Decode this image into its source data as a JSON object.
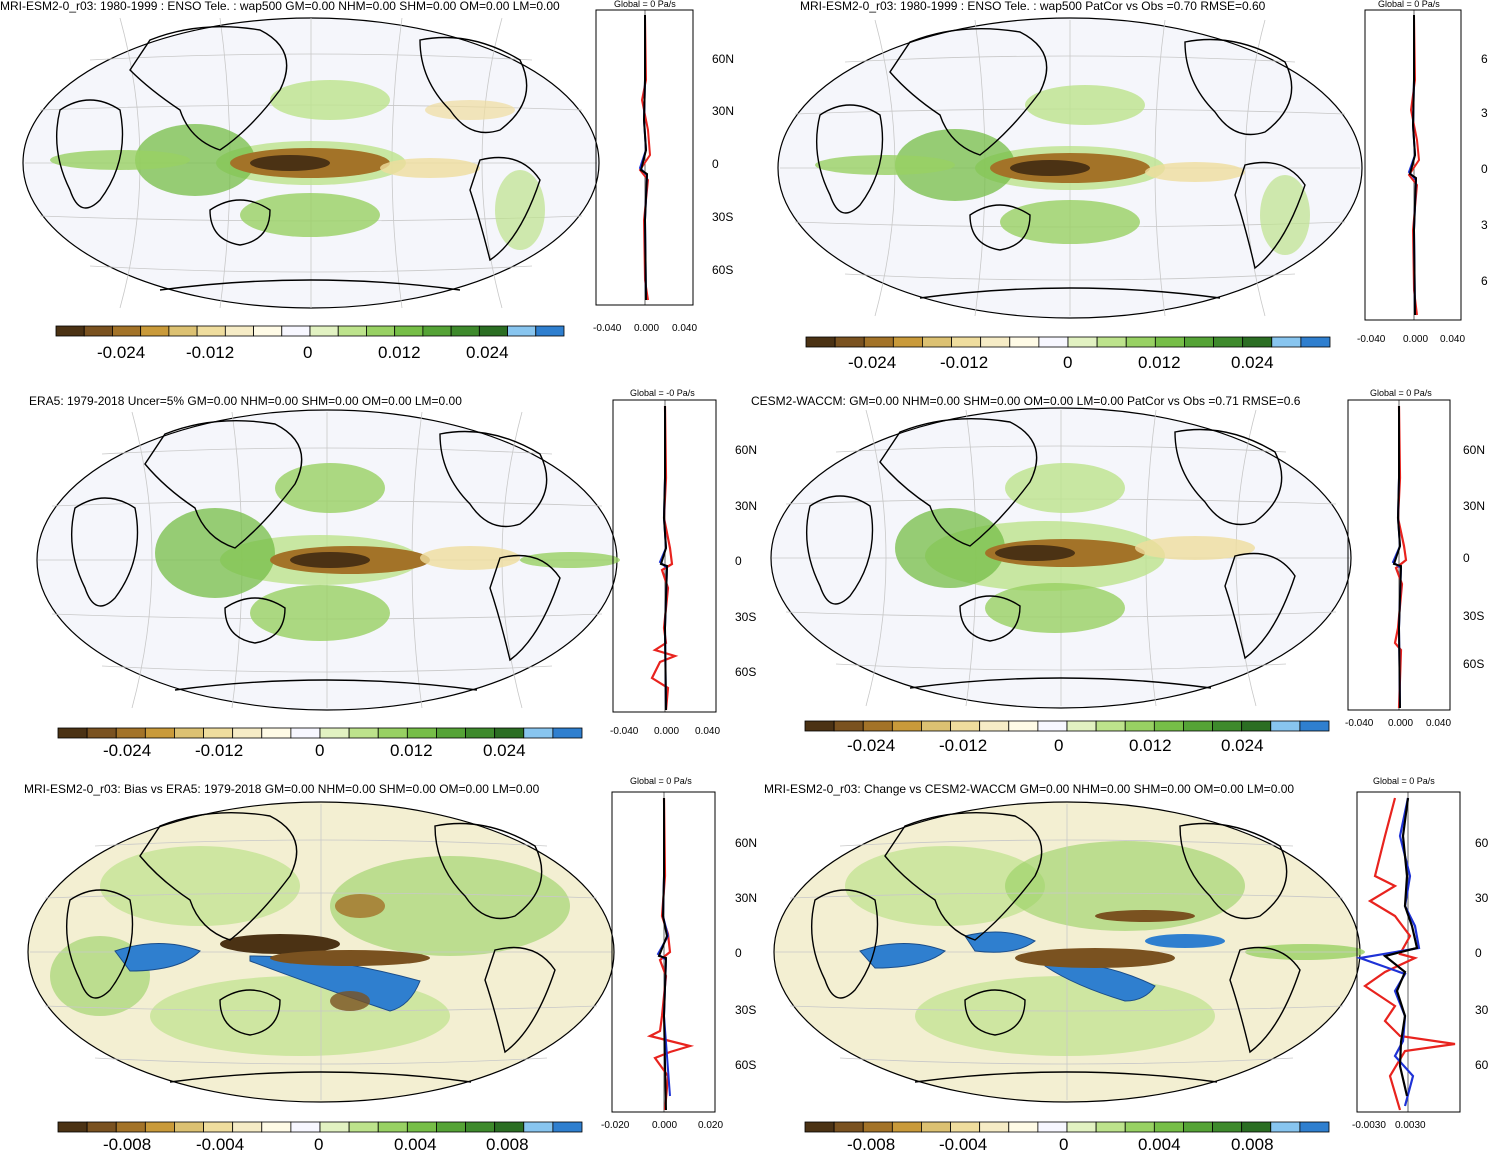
{
  "colors": {
    "scale": [
      "#4b3214",
      "#7a5220",
      "#a37328",
      "#c99a3a",
      "#dcc172",
      "#efdd9e",
      "#f6ecc6",
      "#fffbe6",
      "#f7f7ff",
      "#e2f2c2",
      "#bde38c",
      "#98d163",
      "#76be47",
      "#55a336",
      "#3e8a2c",
      "#2b6e23",
      "#88c5ef",
      "#2f7fcf"
    ],
    "land": "#ffffff",
    "ocean": "#f5f6fb",
    "obs_line": "#e8231e",
    "model_line": "#1e32d6",
    "mean_line": "#000000"
  },
  "panels": [
    {
      "title": "MRI-ESM2-0_r03: 1980-1999 : ENSO Tele. : wap500 GM=0.00 NHM=0.00 SHM=0.00 OM=0.00 LM=0.00",
      "global": "Global = 0 Pa/s",
      "cb_labels": [
        "-0.024",
        "-0.012",
        "0",
        "0.012",
        "0.024"
      ],
      "lat_labels": [
        "60N",
        "30N",
        "0",
        "30S",
        "60S"
      ],
      "x_ticks": [
        "-0.040",
        "0.000",
        "0.040"
      ]
    },
    {
      "title": "MRI-ESM2-0_r03: 1980-1999 : ENSO Tele. : wap500 PatCor vs Obs =0.70 RMSE=0.60",
      "global": "Global = 0 Pa/s",
      "cb_labels": [
        "-0.024",
        "-0.012",
        "0",
        "0.012",
        "0.024"
      ],
      "lat_labels": [
        "6",
        "3",
        "0",
        "3",
        "6"
      ],
      "x_ticks": [
        "-0.040",
        "0.000",
        "0.040"
      ]
    },
    {
      "title": "ERA5: 1979-2018 Uncer=5% GM=0.00 NHM=0.00 SHM=0.00 OM=0.00 LM=0.00",
      "global": "Global = -0 Pa/s",
      "cb_labels": [
        "-0.024",
        "-0.012",
        "0",
        "0.012",
        "0.024"
      ],
      "lat_labels": [
        "60N",
        "30N",
        "0",
        "30S",
        "60S"
      ],
      "x_ticks": [
        "-0.040",
        "0.000",
        "0.040"
      ]
    },
    {
      "title": "CESM2-WACCM: GM=0.00 NHM=0.00 SHM=0.00 OM=0.00 LM=0.00 PatCor vs Obs =0.71 RMSE=0.6",
      "global": "Global = 0 Pa/s",
      "cb_labels": [
        "-0.024",
        "-0.012",
        "0",
        "0.012",
        "0.024"
      ],
      "lat_labels": [
        "60N",
        "30N",
        "0",
        "30S",
        "60S"
      ],
      "x_ticks": [
        "-0.040",
        "0.000",
        "0.040"
      ]
    },
    {
      "title": "MRI-ESM2-0_r03: Bias vs ERA5: 1979-2018 GM=0.00 NHM=0.00 SHM=0.00 OM=0.00 LM=0.00",
      "global": "Global = 0 Pa/s",
      "cb_labels": [
        "-0.008",
        "-0.004",
        "0",
        "0.004",
        "0.008"
      ],
      "lat_labels": [
        "60N",
        "30N",
        "0",
        "30S",
        "60S"
      ],
      "x_ticks": [
        "-0.020",
        "0.000",
        "0.020"
      ]
    },
    {
      "title": "MRI-ESM2-0_r03: Change vs CESM2-WACCM GM=0.00 NHM=0.00 SHM=0.00 OM=0.00 LM=0.00",
      "global": "Global = 0 Pa/s",
      "cb_labels": [
        "-0.008",
        "-0.004",
        "0",
        "0.004",
        "0.008"
      ],
      "lat_labels": [
        "60",
        "30",
        "0",
        "30",
        "60"
      ],
      "x_ticks": [
        "-0.0030",
        "0.0030"
      ]
    }
  ]
}
